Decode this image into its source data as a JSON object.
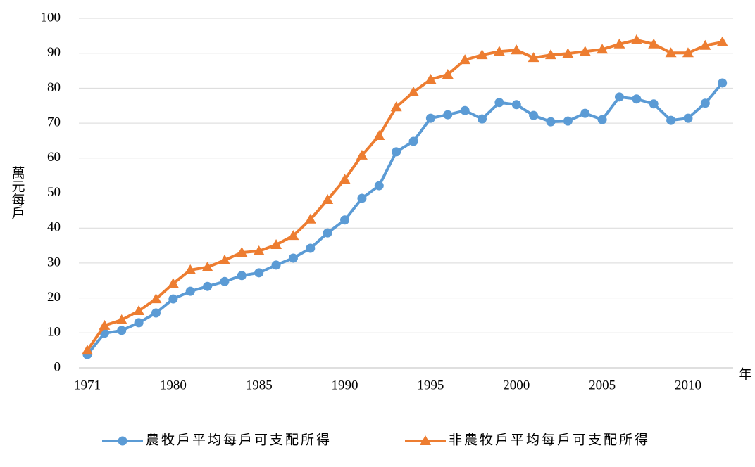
{
  "chart_data": {
    "type": "line",
    "x_label": "年",
    "y_label": "萬元每戶",
    "categories": [
      "1971",
      null,
      null,
      null,
      null,
      "1980",
      null,
      null,
      null,
      null,
      "1985",
      null,
      null,
      null,
      null,
      "1990",
      null,
      null,
      null,
      null,
      "1995",
      null,
      null,
      null,
      null,
      "2000",
      null,
      null,
      null,
      null,
      "2005",
      null,
      null,
      null,
      null,
      "2010",
      null,
      null
    ],
    "series": [
      {
        "name": "農牧戶平均每戶可支配所得",
        "color": "#5b9bd5",
        "marker": "circle",
        "values": [
          3.8,
          9.9,
          10.7,
          12.9,
          15.7,
          19.7,
          21.9,
          23.3,
          24.7,
          26.4,
          27.2,
          29.4,
          31.4,
          34.2,
          38.6,
          42.3,
          48.5,
          52.1,
          61.8,
          64.8,
          71.4,
          72.4,
          73.6,
          71.2,
          75.9,
          75.3,
          72.2,
          70.4,
          70.6,
          72.8,
          71.0,
          77.5,
          76.9,
          75.5,
          70.8,
          71.4,
          75.7,
          81.5
        ]
      },
      {
        "name": "非農牧戶平均每戶可支配所得",
        "color": "#ed7d31",
        "marker": "triangle",
        "values": [
          5.0,
          12.1,
          13.7,
          16.3,
          19.7,
          24.1,
          28.0,
          28.8,
          30.8,
          33.0,
          33.4,
          35.2,
          37.8,
          42.5,
          48.1,
          53.9,
          60.8,
          66.4,
          74.6,
          78.9,
          82.5,
          83.9,
          88.1,
          89.5,
          90.5,
          90.9,
          88.7,
          89.5,
          89.9,
          90.5,
          91.1,
          92.6,
          93.8,
          92.6,
          90.1,
          90.1,
          92.2,
          93.2
        ]
      }
    ],
    "ylim": [
      0,
      100
    ],
    "yticks": [
      0,
      10,
      20,
      30,
      40,
      50,
      60,
      70,
      80,
      90,
      100
    ],
    "grid": true,
    "legend": "bottom"
  }
}
